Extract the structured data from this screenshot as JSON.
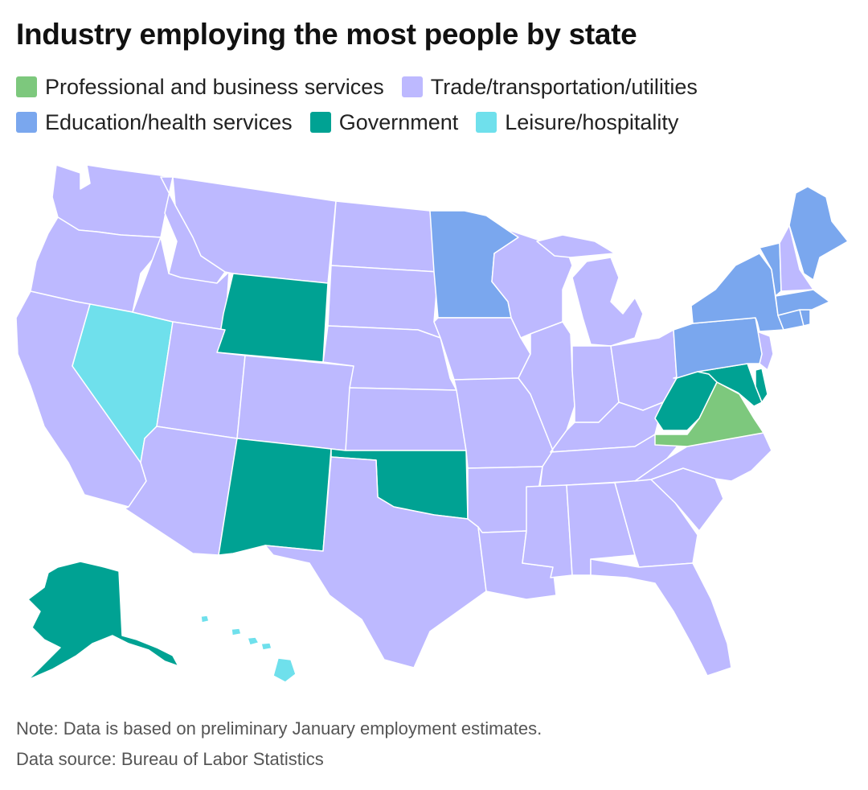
{
  "title": "Industry employing the most people by state",
  "legend": [
    {
      "label": "Professional and business services",
      "color": "#7dc87d"
    },
    {
      "label": "Trade/transportation/utilities",
      "color": "#bdb9ff"
    },
    {
      "label": "Education/health services",
      "color": "#7aa7ee"
    },
    {
      "label": "Government",
      "color": "#00a293"
    },
    {
      "label": "Leisure/hospitality",
      "color": "#6fe0ec"
    }
  ],
  "states": {
    "Washington": "Trade/transportation/utilities",
    "Oregon": "Trade/transportation/utilities",
    "California": "Trade/transportation/utilities",
    "Nevada": "Leisure/hospitality",
    "Idaho": "Trade/transportation/utilities",
    "Montana": "Trade/transportation/utilities",
    "Wyoming": "Government",
    "Utah": "Trade/transportation/utilities",
    "Arizona": "Trade/transportation/utilities",
    "Colorado": "Trade/transportation/utilities",
    "New Mexico": "Government",
    "North Dakota": "Trade/transportation/utilities",
    "South Dakota": "Trade/transportation/utilities",
    "Nebraska": "Trade/transportation/utilities",
    "Kansas": "Trade/transportation/utilities",
    "Oklahoma": "Government",
    "Texas": "Trade/transportation/utilities",
    "Minnesota": "Education/health services",
    "Iowa": "Trade/transportation/utilities",
    "Missouri": "Trade/transportation/utilities",
    "Arkansas": "Trade/transportation/utilities",
    "Louisiana": "Trade/transportation/utilities",
    "Wisconsin": "Trade/transportation/utilities",
    "Illinois": "Trade/transportation/utilities",
    "Michigan": "Trade/transportation/utilities",
    "Indiana": "Trade/transportation/utilities",
    "Ohio": "Trade/transportation/utilities",
    "Kentucky": "Trade/transportation/utilities",
    "Tennessee": "Trade/transportation/utilities",
    "Mississippi": "Trade/transportation/utilities",
    "Alabama": "Trade/transportation/utilities",
    "Georgia": "Trade/transportation/utilities",
    "Florida": "Trade/transportation/utilities",
    "South Carolina": "Trade/transportation/utilities",
    "North Carolina": "Trade/transportation/utilities",
    "Virginia": "Professional and business services",
    "West Virginia": "Government",
    "Maryland": "Government",
    "Delaware": "Government",
    "New Jersey": "Trade/transportation/utilities",
    "Pennsylvania": "Education/health services",
    "New York": "Education/health services",
    "Connecticut": "Education/health services",
    "Rhode Island": "Education/health services",
    "Massachusetts": "Education/health services",
    "Vermont": "Education/health services",
    "New Hampshire": "Trade/transportation/utilities",
    "Maine": "Education/health services",
    "Alaska": "Government",
    "Hawaii": "Leisure/hospitality"
  },
  "note": "Note: Data is based on preliminary January employment estimates.",
  "source": "Data source: Bureau of Labor Statistics"
}
